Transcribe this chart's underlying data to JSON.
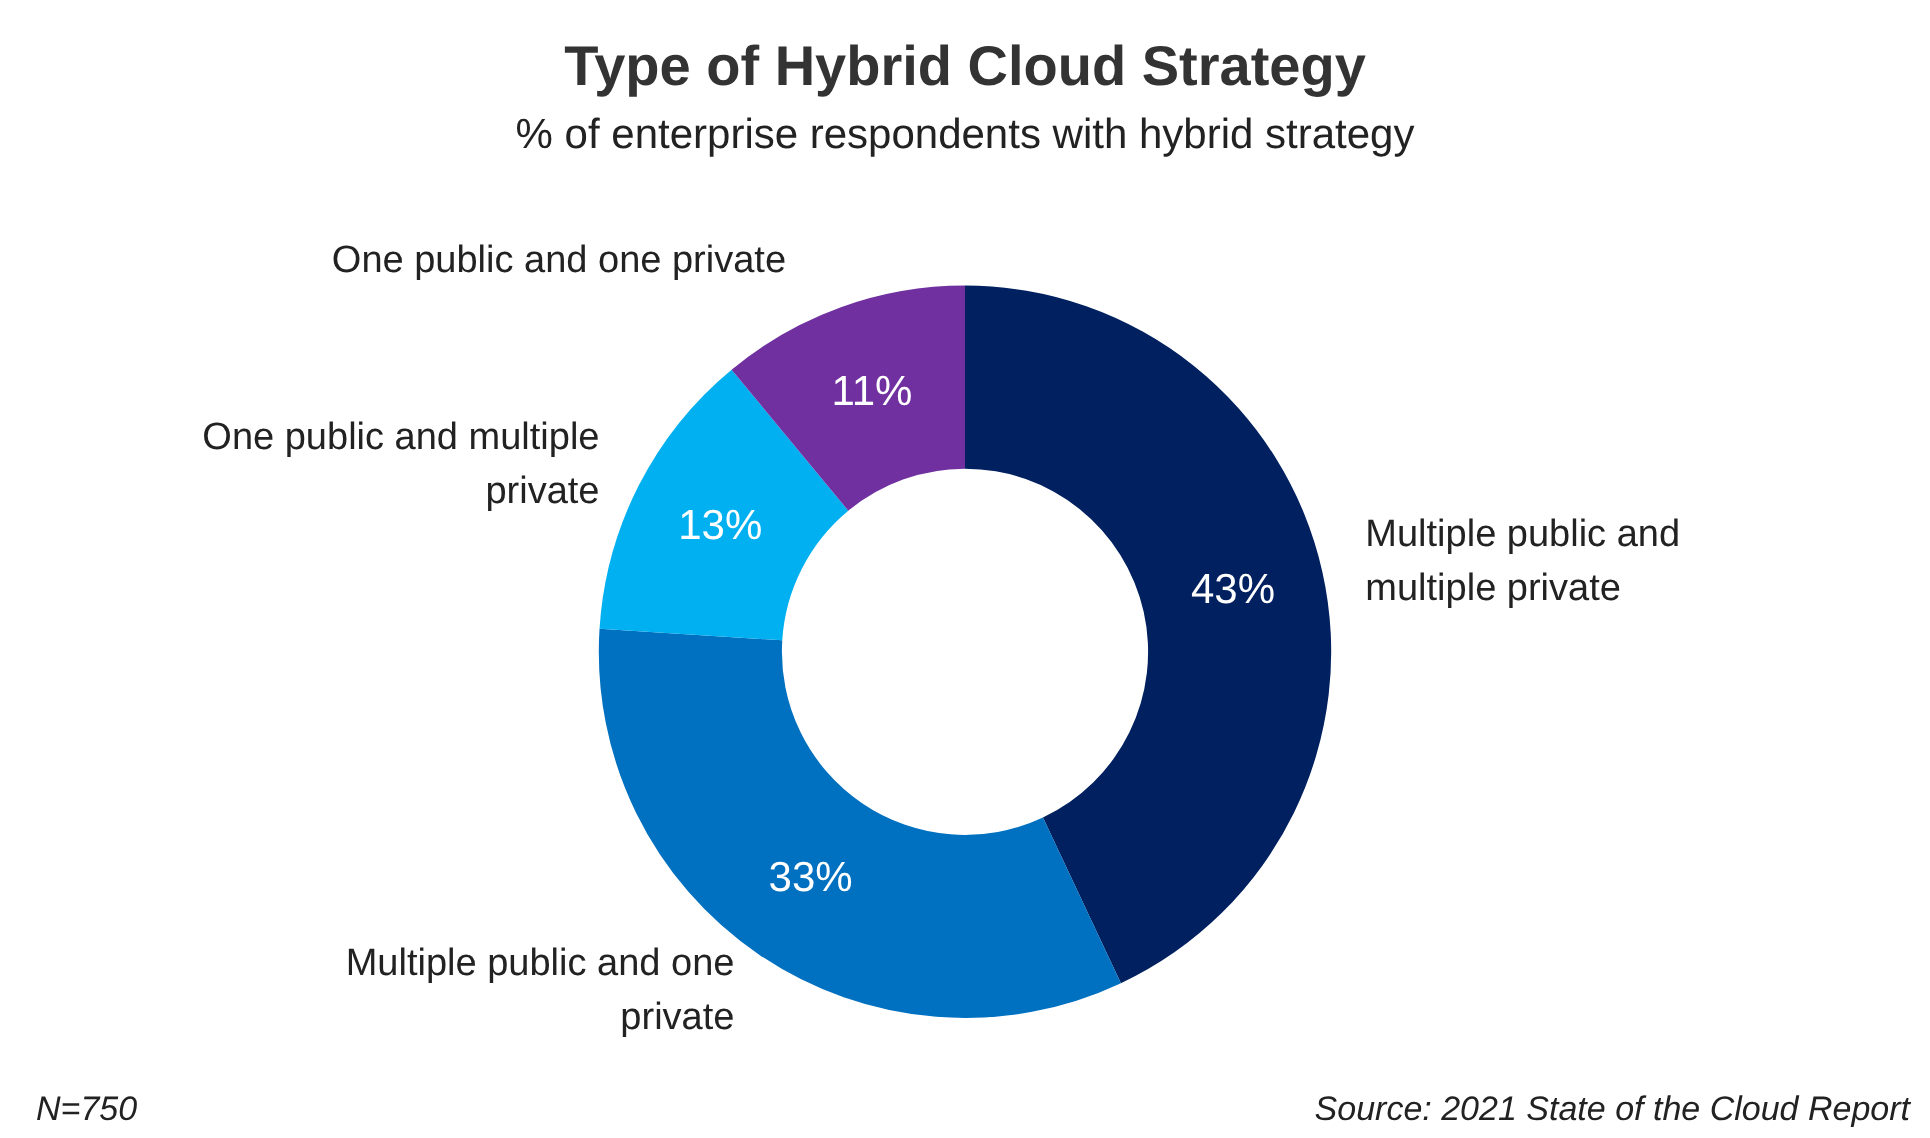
{
  "chart_data": {
    "type": "donut",
    "title": "Type of Hybrid Cloud Strategy",
    "subtitle": "% of enterprise respondents with hybrid strategy",
    "categories": [
      "Multiple public and multiple private",
      "Multiple public and one private",
      "One public and multiple private",
      "One public and one private"
    ],
    "values": [
      43,
      33,
      13,
      11
    ],
    "colors": [
      "#002060",
      "#0070c0",
      "#00b0f0",
      "#7030a0"
    ],
    "value_labels": [
      "43%",
      "33%",
      "13%",
      "11%"
    ],
    "legend": false,
    "annotations": [
      "N=750",
      "Source: 2021 State of the Cloud Report"
    ]
  }
}
